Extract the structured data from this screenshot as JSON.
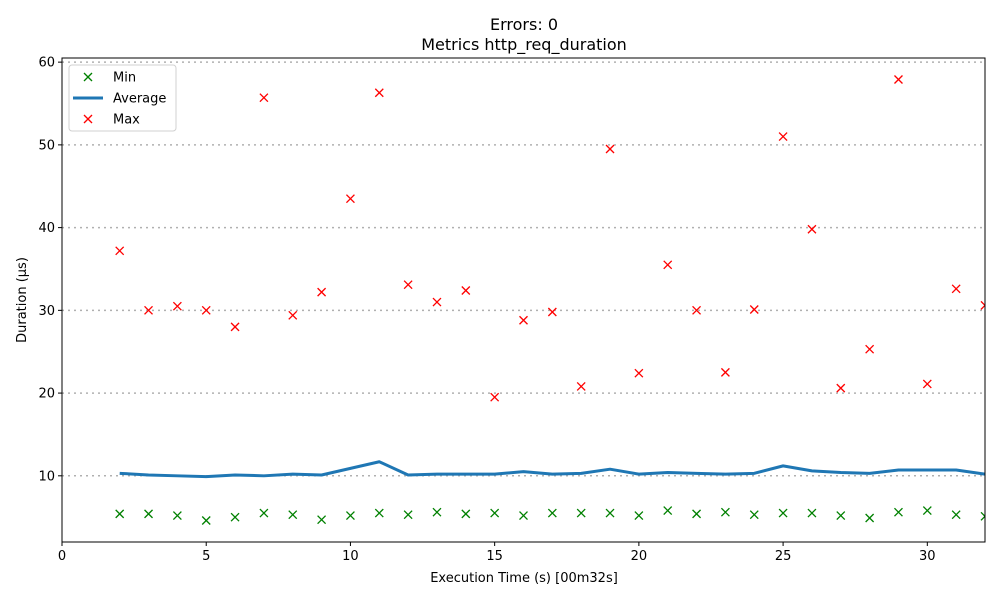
{
  "chart_data": {
    "type": "line",
    "title": "Errors: 0",
    "subtitle": "Metrics http_req_duration",
    "xlabel": "Execution Time (s) [00m32s]",
    "ylabel": "Duration (µs)",
    "xlim": [
      0,
      32
    ],
    "ylim": [
      2,
      60.5
    ],
    "x_ticks": [
      0,
      5,
      10,
      15,
      20,
      25,
      30
    ],
    "y_ticks": [
      10,
      20,
      30,
      40,
      50,
      60
    ],
    "grid": "horizontal dotted",
    "legend_position": "top-left",
    "x": [
      2,
      3,
      4,
      5,
      6,
      7,
      8,
      9,
      10,
      11,
      12,
      13,
      14,
      15,
      16,
      17,
      18,
      19,
      20,
      21,
      22,
      23,
      24,
      25,
      26,
      27,
      28,
      29,
      30,
      31,
      32
    ],
    "series": [
      {
        "name": "Min",
        "style": "x-marker",
        "color": "#008000",
        "values": [
          5.4,
          5.4,
          5.2,
          4.6,
          5.0,
          5.5,
          5.3,
          4.7,
          5.2,
          5.5,
          5.3,
          5.6,
          5.4,
          5.5,
          5.2,
          5.5,
          5.5,
          5.5,
          5.2,
          5.8,
          5.4,
          5.6,
          5.3,
          5.5,
          5.5,
          5.2,
          4.9,
          5.6,
          5.8,
          5.3,
          5.1
        ]
      },
      {
        "name": "Average",
        "style": "line",
        "color": "#1f77b4",
        "values": [
          10.3,
          10.1,
          10.0,
          9.9,
          10.1,
          10.0,
          10.2,
          10.1,
          10.9,
          11.7,
          10.1,
          10.2,
          10.2,
          10.2,
          10.5,
          10.2,
          10.3,
          10.8,
          10.2,
          10.4,
          10.3,
          10.2,
          10.3,
          11.2,
          10.6,
          10.4,
          10.3,
          10.7,
          10.7,
          10.7,
          10.2
        ]
      },
      {
        "name": "Max",
        "style": "x-marker",
        "color": "#ff0000",
        "values": [
          37.2,
          30.0,
          30.5,
          30.0,
          28.0,
          55.7,
          29.4,
          32.2,
          43.5,
          56.3,
          33.1,
          31.0,
          32.4,
          19.5,
          28.8,
          29.8,
          20.8,
          49.5,
          22.4,
          35.5,
          30.0,
          22.5,
          30.1,
          51.0,
          39.8,
          20.6,
          25.3,
          57.9,
          21.1,
          32.6,
          30.6
        ]
      }
    ]
  }
}
